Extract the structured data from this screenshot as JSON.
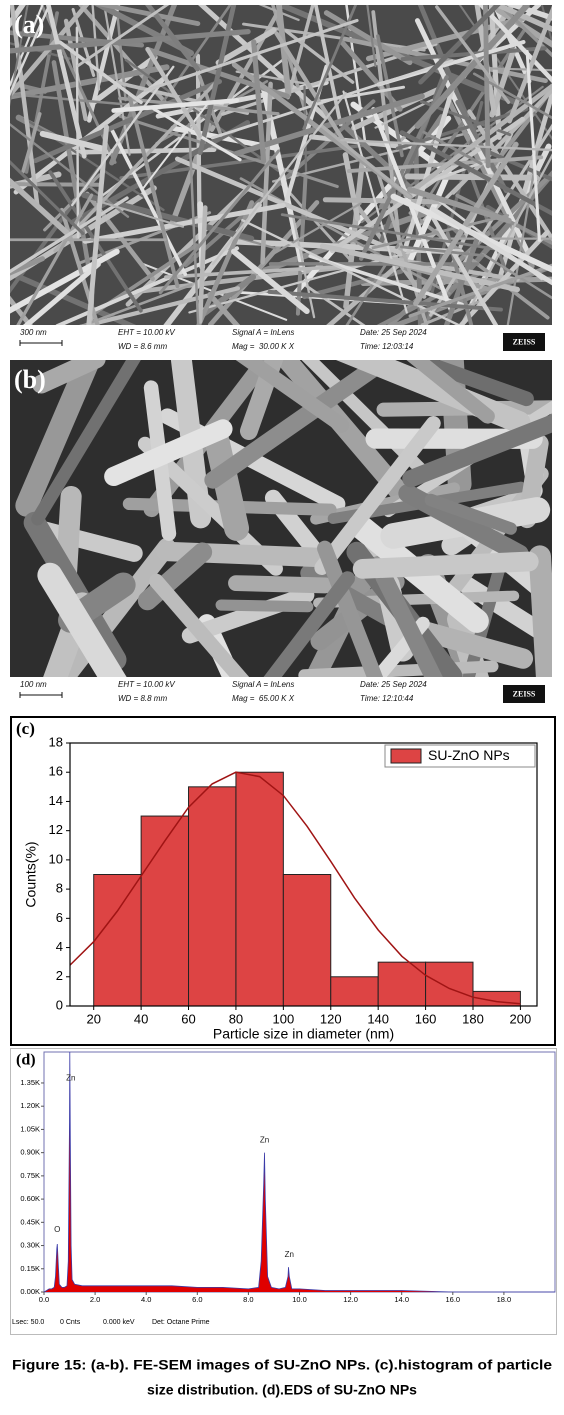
{
  "panels": [
    {
      "label": "(a)",
      "scale_bar": "300 nm",
      "eht": "EHT = 10.00 kV",
      "wd": "WD = 8.6 mm",
      "signal": "Signal A = InLens",
      "mag": "Mag =  30.00 K X",
      "date": "Date: 25 Sep 2024",
      "time": "Time: 12:03:14",
      "brand": "ZEISS"
    },
    {
      "label": "(b)",
      "scale_bar": "100 nm",
      "eht": "EHT = 10.00 kV",
      "wd": "WD = 8.8 mm",
      "signal": "Signal A = InLens",
      "mag": "Mag =  65.00 K X",
      "date": "Date: 25 Sep 2024",
      "time": "Time: 12:10:44",
      "brand": "ZEISS"
    }
  ],
  "chart_data": [
    {
      "type": "histogram",
      "label": "(c)",
      "xlabel": "Particle size in diameter (nm)",
      "ylabel": "Counts(%)",
      "bins": [
        20,
        40,
        60,
        80,
        100,
        120,
        140,
        160,
        180,
        200
      ],
      "series": [
        {
          "name": "SU-ZnO NPs",
          "color": "#dd4444",
          "values": [
            9,
            13,
            15,
            16,
            9,
            2,
            3,
            3,
            1
          ]
        }
      ],
      "fit": {
        "color": "#a01414",
        "x": [
          10,
          20,
          30,
          40,
          50,
          60,
          70,
          80,
          90,
          100,
          110,
          120,
          130,
          140,
          150,
          160,
          170,
          180,
          190,
          200
        ],
        "values": [
          2.8,
          4.4,
          6.5,
          8.9,
          11.3,
          13.6,
          15.2,
          16.0,
          15.7,
          14.4,
          12.3,
          9.9,
          7.4,
          5.2,
          3.4,
          2.1,
          1.2,
          0.6,
          0.3,
          0.15
        ]
      },
      "xlim": [
        10,
        207
      ],
      "ylim": [
        0,
        18
      ],
      "xticks": [
        20,
        40,
        60,
        80,
        100,
        120,
        140,
        160,
        180,
        200
      ],
      "yticks": [
        0,
        2,
        4,
        6,
        8,
        10,
        12,
        14,
        16,
        18
      ],
      "legend": "upper right"
    },
    {
      "type": "area",
      "label": "(d)",
      "color": "#e00000",
      "line_color": "#3a3aa8",
      "x": [
        0,
        0.1,
        0.2,
        0.3,
        0.4,
        0.45,
        0.5,
        0.52,
        0.55,
        0.6,
        0.7,
        0.8,
        0.9,
        0.95,
        1.0,
        1.01,
        1.03,
        1.06,
        1.1,
        1.2,
        1.5,
        2,
        3,
        4,
        5,
        6,
        7,
        8,
        8.4,
        8.5,
        8.6,
        8.63,
        8.66,
        8.75,
        8.9,
        9.2,
        9.45,
        9.55,
        9.57,
        9.6,
        9.7,
        10,
        11,
        12,
        14,
        16,
        18,
        20
      ],
      "values": [
        0,
        0.01,
        0.02,
        0.02,
        0.03,
        0.1,
        0.28,
        0.31,
        0.2,
        0.05,
        0.03,
        0.03,
        0.04,
        0.2,
        1.1,
        1.55,
        1.0,
        0.3,
        0.08,
        0.05,
        0.04,
        0.04,
        0.04,
        0.04,
        0.04,
        0.03,
        0.03,
        0.02,
        0.03,
        0.2,
        0.7,
        0.9,
        0.6,
        0.1,
        0.03,
        0.02,
        0.03,
        0.1,
        0.16,
        0.1,
        0.02,
        0.02,
        0.01,
        0.01,
        0.01,
        0,
        0,
        0
      ],
      "xlim": [
        0,
        20
      ],
      "ylim": [
        0,
        1.55
      ],
      "xticks": [
        {
          "value": 0,
          "label": "0.0"
        },
        {
          "value": 2,
          "label": "2.0"
        },
        {
          "value": 4,
          "label": "4.0"
        },
        {
          "value": 6,
          "label": "6.0"
        },
        {
          "value": 8,
          "label": "8.0"
        },
        {
          "value": 10,
          "label": "10.0"
        },
        {
          "value": 12,
          "label": "12.0"
        },
        {
          "value": 14,
          "label": "14.0"
        },
        {
          "value": 16,
          "label": "16.0"
        },
        {
          "value": 18,
          "label": "18.0"
        }
      ],
      "yticks": [
        {
          "value": 0,
          "label": "0.00K"
        },
        {
          "value": 0.15,
          "label": "0.15K"
        },
        {
          "value": 0.3,
          "label": "0.30K"
        },
        {
          "value": 0.45,
          "label": "0.45K"
        },
        {
          "value": 0.6,
          "label": "0.60K"
        },
        {
          "value": 0.75,
          "label": "0.75K"
        },
        {
          "value": 0.9,
          "label": "0.90K"
        },
        {
          "value": 1.05,
          "label": "1.05K"
        },
        {
          "value": 1.2,
          "label": "1.20K"
        },
        {
          "value": 1.35,
          "label": "1.35K"
        }
      ],
      "annotations": [
        {
          "text": "O",
          "x": 0.52,
          "y": 0.4
        },
        {
          "text": "Zn",
          "x": 1.05,
          "y": 1.38
        },
        {
          "text": "Zn",
          "x": 8.63,
          "y": 0.98
        },
        {
          "text": "Zn",
          "x": 9.6,
          "y": 0.24
        }
      ],
      "footer": [
        "Lsec: 50.0",
        "0 Cnts",
        "0.000 keV",
        "Det: Octane Prime"
      ]
    }
  ],
  "caption": [
    "Figure 15: (a-b). FE-SEM images of SU-ZnO NPs. (c).histogram of particle",
    "size distribution. (d).EDS of SU-ZnO NPs"
  ]
}
